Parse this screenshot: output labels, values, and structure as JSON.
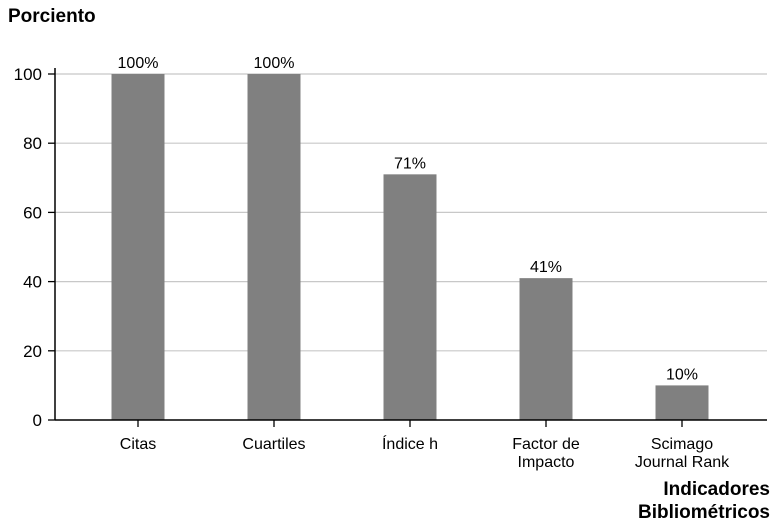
{
  "chart_data": {
    "type": "bar",
    "ylabel": "Porciento",
    "xlabel": "Indicadores\nBibliométricos",
    "categories": [
      "Citas",
      "Cuartiles",
      "Índice h",
      "Factor de\nImpacto",
      "Scimago\nJournal Rank"
    ],
    "values": [
      100,
      100,
      71,
      41,
      10
    ],
    "data_labels": [
      "100%",
      "100%",
      "71%",
      "41%",
      "10%"
    ],
    "ylim": [
      0,
      100
    ],
    "yticks": [
      0,
      20,
      40,
      60,
      80,
      100
    ],
    "grid": true,
    "bar_color": "#808080",
    "grid_color": "#c8c8c8"
  }
}
